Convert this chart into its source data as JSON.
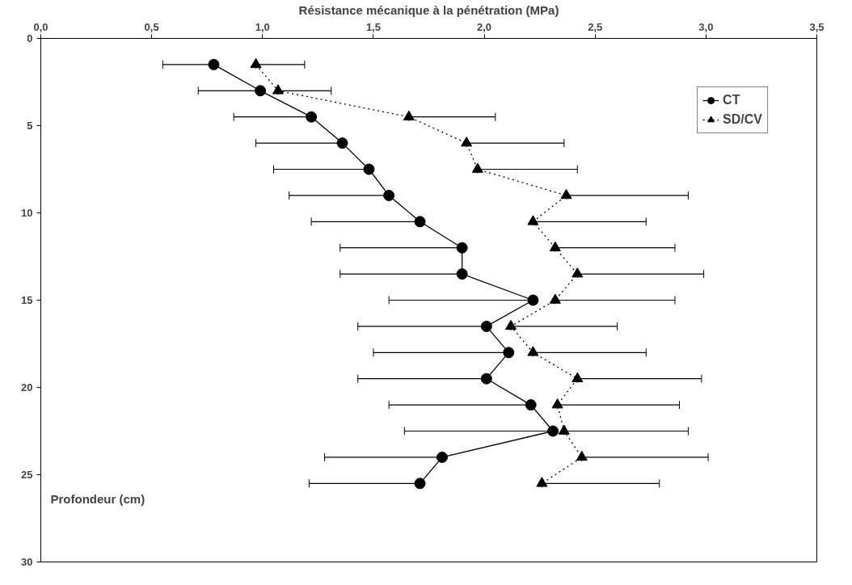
{
  "chart_data": {
    "type": "line",
    "xlabel": "Résistance mécanique à la pénétration (MPa)",
    "ylabel": "Profondeur  (cm)",
    "series": [
      {
        "name": "CT",
        "color": "#000000",
        "marker": "circle",
        "line_style": "solid",
        "x": [
          0.78,
          0.99,
          1.22,
          1.36,
          1.48,
          1.57,
          1.71,
          1.9,
          1.9,
          2.22,
          2.01,
          2.11,
          2.01,
          2.21,
          2.31,
          1.81,
          1.71
        ],
        "values": [
          1.5,
          3,
          4.5,
          6,
          7.5,
          9,
          10.5,
          12,
          13.5,
          15,
          16.5,
          18,
          19.5,
          21,
          22.5,
          24,
          25.5
        ],
        "xerrors": [
          [
            0.55,
            0.78
          ],
          [
            0.71,
            0.99
          ],
          [
            0.87,
            1.22
          ],
          [
            0.97,
            1.36
          ],
          [
            1.05,
            1.48
          ],
          [
            1.12,
            1.57
          ],
          [
            1.22,
            1.71
          ],
          [
            1.35,
            1.9
          ],
          [
            1.35,
            1.9
          ],
          [
            1.57,
            2.22
          ],
          [
            1.43,
            2.01
          ],
          [
            1.5,
            2.11
          ],
          [
            1.43,
            2.01
          ],
          [
            1.57,
            2.21
          ],
          [
            1.64,
            2.31
          ],
          [
            1.28,
            1.81
          ],
          [
            1.21,
            1.71
          ]
        ]
      },
      {
        "name": "SD/CV",
        "color": "#000000",
        "marker": "triangle",
        "line_style": "dotted",
        "x": [
          0.97,
          1.07,
          1.66,
          1.92,
          1.97,
          2.37,
          2.22,
          2.32,
          2.42,
          2.32,
          2.12,
          2.22,
          2.42,
          2.33,
          2.36,
          2.44,
          2.26
        ],
        "values": [
          1.5,
          3,
          4.5,
          6,
          7.5,
          9,
          10.5,
          12,
          13.5,
          15,
          16.5,
          18,
          19.5,
          21,
          22.5,
          24,
          25.5
        ],
        "xerrors": [
          [
            0.97,
            1.19
          ],
          [
            1.07,
            1.31
          ],
          [
            1.66,
            2.05
          ],
          [
            1.92,
            2.36
          ],
          [
            1.97,
            2.42
          ],
          [
            2.37,
            2.92
          ],
          [
            2.22,
            2.73
          ],
          [
            2.32,
            2.86
          ],
          [
            2.42,
            2.99
          ],
          [
            2.32,
            2.86
          ],
          [
            2.12,
            2.6
          ],
          [
            2.22,
            2.73
          ],
          [
            2.42,
            2.98
          ],
          [
            2.33,
            2.88
          ],
          [
            2.36,
            2.92
          ],
          [
            2.44,
            3.01
          ],
          [
            2.26,
            2.79
          ]
        ]
      }
    ],
    "xlim": [
      0,
      3.5
    ],
    "xticks": [
      {
        "value": 0,
        "label": "0,0"
      },
      {
        "value": 0.5,
        "label": "0,5"
      },
      {
        "value": 1,
        "label": "1,0"
      },
      {
        "value": 1.5,
        "label": "1,5"
      },
      {
        "value": 2,
        "label": "2,0"
      },
      {
        "value": 2.5,
        "label": "2,5"
      },
      {
        "value": 3,
        "label": "3,0"
      },
      {
        "value": 3.5,
        "label": "3,5"
      }
    ],
    "ylim": [
      30,
      0
    ],
    "yticks": [
      0,
      5,
      10,
      15,
      20,
      25,
      30
    ],
    "grid": false,
    "legend": "top right"
  }
}
